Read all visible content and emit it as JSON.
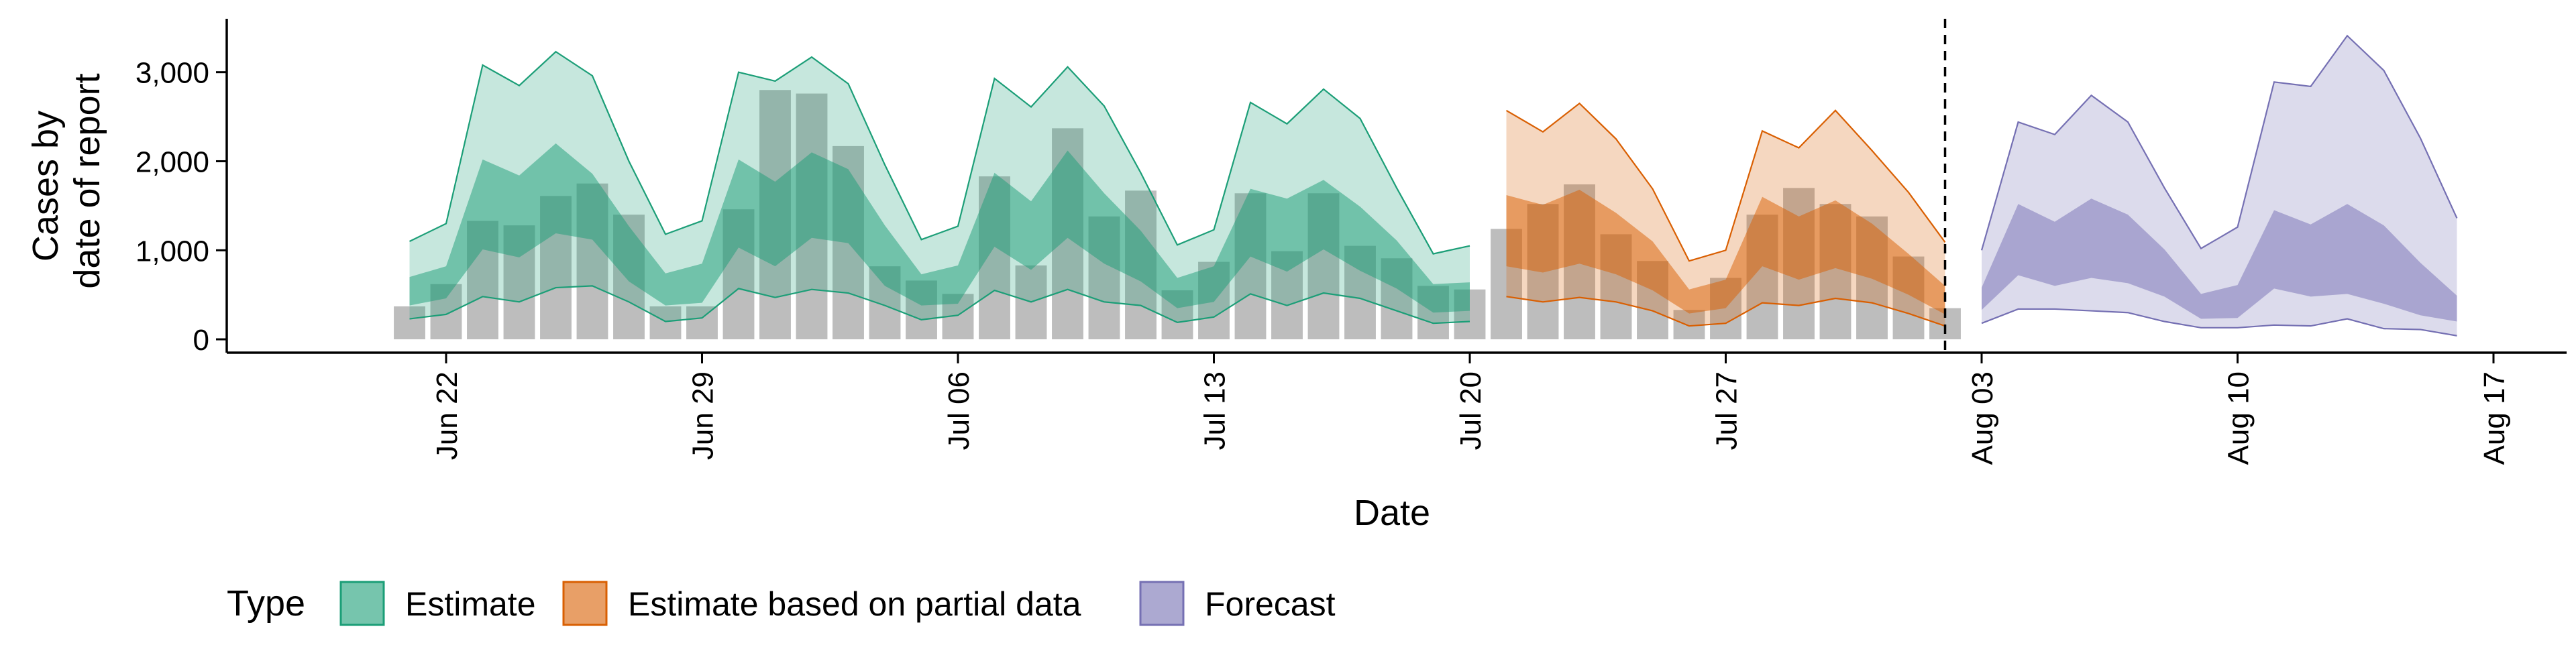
{
  "chart_data": {
    "type": "area",
    "xlabel": "Date",
    "ylabel_lines": [
      "Cases by",
      "date of report"
    ],
    "x_tick_labels": [
      "Jun 22",
      "Jun 29",
      "Jul 06",
      "Jul 13",
      "Jul 20",
      "Jul 27",
      "Aug 03",
      "Aug 10",
      "Aug 17"
    ],
    "x_tick_dates": [
      "2020-06-22",
      "2020-06-29",
      "2020-07-06",
      "2020-07-13",
      "2020-07-20",
      "2020-07-27",
      "2020-08-03",
      "2020-08-10",
      "2020-08-17"
    ],
    "xlim": [
      "2020-06-16",
      "2020-08-19"
    ],
    "y_tick_labels": [
      "0",
      "1,000",
      "2,000",
      "3,000"
    ],
    "y_ticks": [
      0,
      1000,
      2000,
      3000
    ],
    "ylim": [
      -150,
      3600
    ],
    "vline_date": "2020-08-02",
    "legend_title": "Type",
    "legend_position": "bottom",
    "legend": [
      {
        "name": "Estimate",
        "color": "#1b9e77"
      },
      {
        "name": "Estimate based on partial data",
        "color": "#d95f02"
      },
      {
        "name": "Forecast",
        "color": "#7570b3"
      }
    ],
    "bars": {
      "color": "#bdbdbd",
      "start_date": "2020-06-21",
      "values": [
        370,
        620,
        1330,
        1280,
        1610,
        1750,
        1400,
        370,
        370,
        1460,
        2800,
        2760,
        2170,
        820,
        660,
        510,
        1830,
        830,
        2370,
        1380,
        1670,
        550,
        870,
        1640,
        990,
        1640,
        1050,
        910,
        600,
        560,
        1240,
        1520,
        1740,
        1180,
        880,
        330,
        690,
        1400,
        1700,
        1520,
        1380,
        930,
        350
      ]
    },
    "series": [
      {
        "name": "Estimate",
        "color": "#1b9e77",
        "start_date": "2020-06-21",
        "outer_upper": [
          1100,
          1300,
          3080,
          2850,
          3230,
          2960,
          2000,
          1180,
          1330,
          3000,
          2900,
          3170,
          2870,
          1960,
          1120,
          1270,
          2930,
          2610,
          3060,
          2620,
          1870,
          1060,
          1230,
          2660,
          2420,
          2810,
          2480,
          1700,
          960,
          1050
        ],
        "inner_upper": [
          700,
          820,
          2020,
          1840,
          2200,
          1860,
          1270,
          740,
          850,
          2020,
          1770,
          2100,
          1910,
          1280,
          730,
          830,
          1870,
          1550,
          2120,
          1640,
          1220,
          690,
          820,
          1690,
          1580,
          1790,
          1490,
          1110,
          620,
          640
        ],
        "inner_lower": [
          380,
          460,
          1010,
          920,
          1190,
          1120,
          650,
          380,
          410,
          1030,
          820,
          1140,
          1080,
          600,
          380,
          400,
          1040,
          780,
          1140,
          850,
          650,
          350,
          420,
          930,
          760,
          1010,
          770,
          570,
          300,
          320
        ],
        "outer_lower": [
          230,
          280,
          480,
          420,
          580,
          600,
          420,
          200,
          240,
          570,
          470,
          560,
          520,
          380,
          220,
          270,
          550,
          420,
          560,
          420,
          380,
          190,
          250,
          510,
          380,
          520,
          460,
          320,
          180,
          200
        ]
      },
      {
        "name": "Estimate based on partial data",
        "color": "#d95f02",
        "start_date": "2020-07-21",
        "outer_upper": [
          2570,
          2330,
          2650,
          2250,
          1690,
          880,
          1000,
          2340,
          2150,
          2570,
          2120,
          1650,
          1090
        ],
        "inner_upper": [
          1620,
          1510,
          1680,
          1420,
          1100,
          560,
          670,
          1600,
          1380,
          1560,
          1300,
          960,
          600
        ],
        "inner_lower": [
          820,
          750,
          850,
          730,
          550,
          290,
          350,
          820,
          670,
          800,
          680,
          500,
          280
        ],
        "outer_lower": [
          480,
          420,
          470,
          420,
          320,
          150,
          180,
          410,
          380,
          460,
          410,
          290,
          150
        ]
      },
      {
        "name": "Forecast",
        "color": "#7570b3",
        "start_date": "2020-08-03",
        "outer_upper": [
          1000,
          2440,
          2300,
          2740,
          2440,
          1700,
          1020,
          1260,
          2890,
          2840,
          3410,
          3020,
          2260,
          1360
        ],
        "inner_upper": [
          580,
          1520,
          1320,
          1580,
          1400,
          1010,
          510,
          610,
          1450,
          1290,
          1520,
          1280,
          860,
          490
        ],
        "inner_lower": [
          330,
          720,
          600,
          690,
          630,
          480,
          230,
          240,
          570,
          480,
          510,
          400,
          270,
          200
        ],
        "outer_lower": [
          180,
          340,
          340,
          320,
          300,
          200,
          130,
          130,
          160,
          150,
          230,
          120,
          110,
          40
        ]
      }
    ]
  }
}
